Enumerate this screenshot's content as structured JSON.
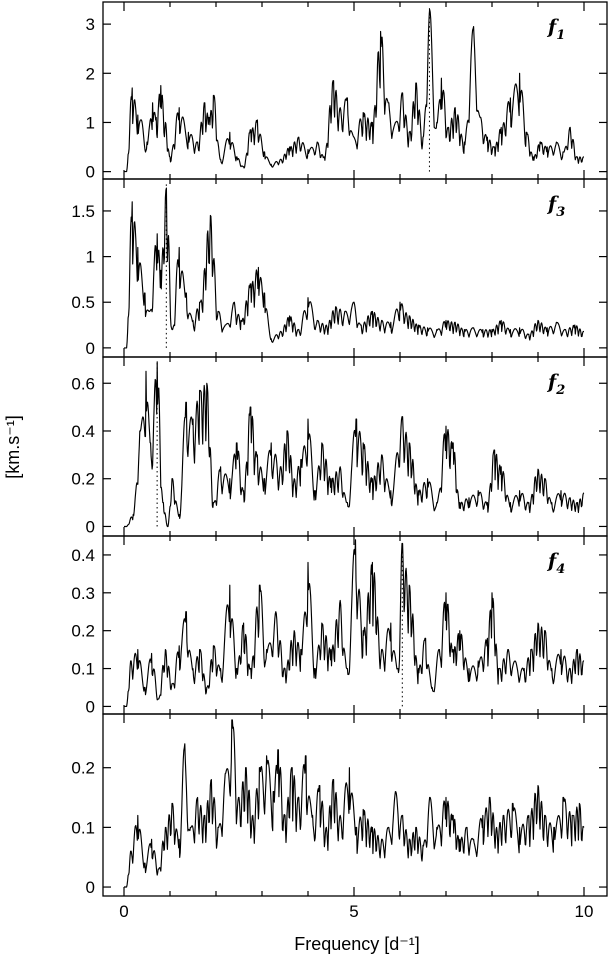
{
  "chart_data": {
    "type": "line",
    "xlabel": "Frequency [d⁻¹]",
    "ylabel": "[km.s⁻¹]",
    "xlim": [
      0,
      10
    ],
    "xticks": [
      0,
      5,
      10
    ],
    "grid": false,
    "panels": [
      {
        "label": "f",
        "label_sub": "1",
        "ylim": [
          -0.15,
          3.45
        ],
        "yticks": [
          0,
          1,
          2,
          3
        ],
        "marker_x": 6.64,
        "peaks": [
          [
            0.05,
            0.0
          ],
          [
            0.18,
            1.7
          ],
          [
            0.3,
            1.15
          ],
          [
            0.38,
            1.05
          ],
          [
            0.5,
            0.6
          ],
          [
            0.62,
            1.4
          ],
          [
            0.7,
            1.1
          ],
          [
            0.8,
            1.75
          ],
          [
            0.9,
            1.0
          ],
          [
            1.0,
            0.3
          ],
          [
            1.2,
            1.3
          ],
          [
            1.4,
            0.8
          ],
          [
            1.6,
            0.6
          ],
          [
            1.75,
            1.4
          ],
          [
            1.85,
            1.1
          ],
          [
            1.95,
            1.55
          ],
          [
            2.1,
            0.25
          ],
          [
            2.3,
            0.8
          ],
          [
            2.45,
            0.3
          ],
          [
            2.6,
            0.1
          ],
          [
            2.75,
            0.85
          ],
          [
            2.9,
            1.05
          ],
          [
            3.05,
            0.4
          ],
          [
            3.2,
            0.15
          ],
          [
            3.4,
            0.25
          ],
          [
            3.6,
            0.5
          ],
          [
            3.8,
            0.7
          ],
          [
            4.0,
            0.45
          ],
          [
            4.2,
            0.6
          ],
          [
            4.35,
            0.3
          ],
          [
            4.55,
            1.85
          ],
          [
            4.7,
            1.3
          ],
          [
            4.85,
            1.5
          ],
          [
            5.0,
            0.7
          ],
          [
            5.2,
            1.2
          ],
          [
            5.4,
            1.0
          ],
          [
            5.58,
            2.85
          ],
          [
            5.75,
            1.4
          ],
          [
            5.9,
            1.0
          ],
          [
            6.05,
            1.6
          ],
          [
            6.2,
            0.8
          ],
          [
            6.35,
            1.8
          ],
          [
            6.5,
            0.7
          ],
          [
            6.64,
            3.3
          ],
          [
            6.8,
            1.0
          ],
          [
            6.9,
            1.9
          ],
          [
            7.05,
            0.9
          ],
          [
            7.2,
            1.3
          ],
          [
            7.4,
            0.6
          ],
          [
            7.6,
            2.95
          ],
          [
            7.75,
            1.1
          ],
          [
            7.9,
            0.7
          ],
          [
            8.05,
            0.5
          ],
          [
            8.2,
            0.9
          ],
          [
            8.4,
            1.5
          ],
          [
            8.6,
            2.0
          ],
          [
            8.75,
            0.8
          ],
          [
            8.9,
            0.3
          ],
          [
            9.05,
            0.6
          ],
          [
            9.2,
            0.5
          ],
          [
            9.4,
            0.6
          ],
          [
            9.55,
            0.4
          ],
          [
            9.7,
            0.9
          ],
          [
            9.85,
            0.3
          ],
          [
            10.0,
            0.3
          ]
        ]
      },
      {
        "label": "f",
        "label_sub": "3",
        "ylim": [
          -0.1,
          1.85
        ],
        "yticks": [
          0,
          0.5,
          1,
          1.5
        ],
        "marker_x": 0.92,
        "peaks": [
          [
            0.05,
            0.0
          ],
          [
            0.18,
            1.6
          ],
          [
            0.3,
            1.1
          ],
          [
            0.45,
            0.6
          ],
          [
            0.55,
            0.4
          ],
          [
            0.72,
            1.25
          ],
          [
            0.8,
            0.85
          ],
          [
            0.92,
            1.75
          ],
          [
            1.05,
            0.2
          ],
          [
            1.2,
            1.1
          ],
          [
            1.35,
            0.6
          ],
          [
            1.5,
            0.3
          ],
          [
            1.65,
            0.5
          ],
          [
            1.88,
            1.45
          ],
          [
            2.05,
            0.4
          ],
          [
            2.2,
            0.25
          ],
          [
            2.4,
            0.5
          ],
          [
            2.55,
            0.3
          ],
          [
            2.75,
            0.7
          ],
          [
            2.92,
            0.88
          ],
          [
            3.05,
            0.6
          ],
          [
            3.2,
            0.1
          ],
          [
            3.4,
            0.18
          ],
          [
            3.6,
            0.35
          ],
          [
            3.8,
            0.2
          ],
          [
            4.0,
            0.55
          ],
          [
            4.2,
            0.3
          ],
          [
            4.4,
            0.25
          ],
          [
            4.6,
            0.45
          ],
          [
            4.8,
            0.4
          ],
          [
            5.0,
            0.5
          ],
          [
            5.15,
            0.25
          ],
          [
            5.4,
            0.4
          ],
          [
            5.6,
            0.3
          ],
          [
            5.8,
            0.28
          ],
          [
            6.0,
            0.5
          ],
          [
            6.2,
            0.35
          ],
          [
            6.4,
            0.25
          ],
          [
            6.6,
            0.22
          ],
          [
            6.8,
            0.2
          ],
          [
            7.0,
            0.3
          ],
          [
            7.2,
            0.28
          ],
          [
            7.4,
            0.2
          ],
          [
            7.6,
            0.22
          ],
          [
            7.8,
            0.2
          ],
          [
            8.0,
            0.2
          ],
          [
            8.2,
            0.3
          ],
          [
            8.4,
            0.2
          ],
          [
            8.6,
            0.22
          ],
          [
            8.8,
            0.15
          ],
          [
            9.0,
            0.3
          ],
          [
            9.2,
            0.22
          ],
          [
            9.4,
            0.28
          ],
          [
            9.6,
            0.2
          ],
          [
            9.8,
            0.25
          ],
          [
            10.0,
            0.18
          ]
        ]
      },
      {
        "label": "f",
        "label_sub": "2",
        "ylim": [
          -0.04,
          0.71
        ],
        "yticks": [
          0,
          0.2,
          0.4,
          0.6
        ],
        "marker_x": 0.72,
        "peaks": [
          [
            0.05,
            0.0
          ],
          [
            0.2,
            0.05
          ],
          [
            0.35,
            0.4
          ],
          [
            0.48,
            0.65
          ],
          [
            0.58,
            0.35
          ],
          [
            0.72,
            0.69
          ],
          [
            0.85,
            0.1
          ],
          [
            0.95,
            0.0
          ],
          [
            1.05,
            0.2
          ],
          [
            1.2,
            0.05
          ],
          [
            1.35,
            0.52
          ],
          [
            1.5,
            0.45
          ],
          [
            1.65,
            0.57
          ],
          [
            1.8,
            0.6
          ],
          [
            1.95,
            0.1
          ],
          [
            2.1,
            0.25
          ],
          [
            2.3,
            0.2
          ],
          [
            2.45,
            0.35
          ],
          [
            2.6,
            0.15
          ],
          [
            2.75,
            0.5
          ],
          [
            2.9,
            0.3
          ],
          [
            3.05,
            0.2
          ],
          [
            3.2,
            0.35
          ],
          [
            3.4,
            0.25
          ],
          [
            3.55,
            0.4
          ],
          [
            3.7,
            0.2
          ],
          [
            3.85,
            0.28
          ],
          [
            4.0,
            0.45
          ],
          [
            4.15,
            0.15
          ],
          [
            4.3,
            0.35
          ],
          [
            4.5,
            0.2
          ],
          [
            4.7,
            0.25
          ],
          [
            4.85,
            0.1
          ],
          [
            5.05,
            0.45
          ],
          [
            5.2,
            0.35
          ],
          [
            5.4,
            0.2
          ],
          [
            5.6,
            0.3
          ],
          [
            5.8,
            0.15
          ],
          [
            6.05,
            0.46
          ],
          [
            6.2,
            0.35
          ],
          [
            6.4,
            0.15
          ],
          [
            6.6,
            0.2
          ],
          [
            6.8,
            0.1
          ],
          [
            7.0,
            0.42
          ],
          [
            7.15,
            0.35
          ],
          [
            7.3,
            0.1
          ],
          [
            7.5,
            0.12
          ],
          [
            7.7,
            0.15
          ],
          [
            7.9,
            0.1
          ],
          [
            8.05,
            0.32
          ],
          [
            8.2,
            0.25
          ],
          [
            8.4,
            0.1
          ],
          [
            8.6,
            0.15
          ],
          [
            8.8,
            0.1
          ],
          [
            9.0,
            0.24
          ],
          [
            9.15,
            0.2
          ],
          [
            9.3,
            0.1
          ],
          [
            9.5,
            0.15
          ],
          [
            9.7,
            0.12
          ],
          [
            9.85,
            0.1
          ],
          [
            10.0,
            0.14
          ]
        ]
      },
      {
        "label": "f",
        "label_sub": "4",
        "ylim": [
          -0.02,
          0.45
        ],
        "yticks": [
          0,
          0.1,
          0.2,
          0.3,
          0.4
        ],
        "marker_x": 6.05,
        "peaks": [
          [
            0.05,
            0.0
          ],
          [
            0.15,
            0.12
          ],
          [
            0.3,
            0.15
          ],
          [
            0.45,
            0.05
          ],
          [
            0.6,
            0.14
          ],
          [
            0.75,
            0.02
          ],
          [
            0.9,
            0.15
          ],
          [
            1.05,
            0.06
          ],
          [
            1.2,
            0.16
          ],
          [
            1.35,
            0.25
          ],
          [
            1.5,
            0.1
          ],
          [
            1.65,
            0.15
          ],
          [
            1.8,
            0.05
          ],
          [
            1.95,
            0.16
          ],
          [
            2.1,
            0.1
          ],
          [
            2.3,
            0.32
          ],
          [
            2.45,
            0.1
          ],
          [
            2.6,
            0.22
          ],
          [
            2.75,
            0.1
          ],
          [
            2.95,
            0.32
          ],
          [
            3.1,
            0.15
          ],
          [
            3.3,
            0.25
          ],
          [
            3.5,
            0.1
          ],
          [
            3.7,
            0.2
          ],
          [
            3.85,
            0.15
          ],
          [
            4.0,
            0.38
          ],
          [
            4.15,
            0.1
          ],
          [
            4.3,
            0.22
          ],
          [
            4.5,
            0.15
          ],
          [
            4.7,
            0.28
          ],
          [
            4.85,
            0.1
          ],
          [
            5.03,
            0.44
          ],
          [
            5.2,
            0.2
          ],
          [
            5.4,
            0.38
          ],
          [
            5.6,
            0.15
          ],
          [
            5.8,
            0.22
          ],
          [
            5.95,
            0.1
          ],
          [
            6.05,
            0.43
          ],
          [
            6.2,
            0.32
          ],
          [
            6.4,
            0.1
          ],
          [
            6.55,
            0.18
          ],
          [
            6.7,
            0.05
          ],
          [
            6.85,
            0.15
          ],
          [
            7.0,
            0.3
          ],
          [
            7.15,
            0.15
          ],
          [
            7.3,
            0.2
          ],
          [
            7.5,
            0.1
          ],
          [
            7.7,
            0.12
          ],
          [
            7.9,
            0.18
          ],
          [
            8.0,
            0.3
          ],
          [
            8.15,
            0.1
          ],
          [
            8.35,
            0.15
          ],
          [
            8.5,
            0.12
          ],
          [
            8.7,
            0.1
          ],
          [
            8.85,
            0.15
          ],
          [
            9.0,
            0.22
          ],
          [
            9.15,
            0.2
          ],
          [
            9.3,
            0.1
          ],
          [
            9.5,
            0.15
          ],
          [
            9.7,
            0.1
          ],
          [
            9.85,
            0.15
          ],
          [
            10.0,
            0.12
          ]
        ]
      },
      {
        "label": "",
        "label_sub": "",
        "ylim": [
          -0.015,
          0.29
        ],
        "yticks": [
          0,
          0.1,
          0.2
        ],
        "marker_x": null,
        "peaks": [
          [
            0.05,
            0.0
          ],
          [
            0.15,
            0.06
          ],
          [
            0.3,
            0.12
          ],
          [
            0.45,
            0.04
          ],
          [
            0.6,
            0.08
          ],
          [
            0.75,
            0.03
          ],
          [
            0.9,
            0.1
          ],
          [
            1.05,
            0.14
          ],
          [
            1.2,
            0.08
          ],
          [
            1.32,
            0.24
          ],
          [
            1.45,
            0.1
          ],
          [
            1.6,
            0.15
          ],
          [
            1.75,
            0.12
          ],
          [
            1.9,
            0.18
          ],
          [
            2.05,
            0.1
          ],
          [
            2.2,
            0.19
          ],
          [
            2.35,
            0.28
          ],
          [
            2.5,
            0.15
          ],
          [
            2.65,
            0.2
          ],
          [
            2.8,
            0.12
          ],
          [
            2.95,
            0.2
          ],
          [
            3.1,
            0.22
          ],
          [
            3.25,
            0.16
          ],
          [
            3.35,
            0.23
          ],
          [
            3.5,
            0.12
          ],
          [
            3.65,
            0.2
          ],
          [
            3.8,
            0.15
          ],
          [
            3.95,
            0.22
          ],
          [
            4.1,
            0.12
          ],
          [
            4.25,
            0.17
          ],
          [
            4.4,
            0.1
          ],
          [
            4.55,
            0.18
          ],
          [
            4.7,
            0.12
          ],
          [
            4.9,
            0.2
          ],
          [
            5.05,
            0.1
          ],
          [
            5.2,
            0.13
          ],
          [
            5.4,
            0.1
          ],
          [
            5.6,
            0.08
          ],
          [
            5.75,
            0.1
          ],
          [
            5.9,
            0.16
          ],
          [
            6.05,
            0.12
          ],
          [
            6.2,
            0.08
          ],
          [
            6.35,
            0.1
          ],
          [
            6.5,
            0.07
          ],
          [
            6.65,
            0.15
          ],
          [
            6.8,
            0.1
          ],
          [
            7.0,
            0.15
          ],
          [
            7.15,
            0.12
          ],
          [
            7.3,
            0.08
          ],
          [
            7.45,
            0.1
          ],
          [
            7.6,
            0.08
          ],
          [
            7.8,
            0.12
          ],
          [
            7.95,
            0.15
          ],
          [
            8.1,
            0.1
          ],
          [
            8.25,
            0.12
          ],
          [
            8.45,
            0.14
          ],
          [
            8.6,
            0.1
          ],
          [
            8.8,
            0.12
          ],
          [
            9.0,
            0.17
          ],
          [
            9.15,
            0.12
          ],
          [
            9.35,
            0.1
          ],
          [
            9.55,
            0.15
          ],
          [
            9.75,
            0.12
          ],
          [
            9.9,
            0.14
          ],
          [
            10.0,
            0.1
          ]
        ]
      }
    ]
  }
}
